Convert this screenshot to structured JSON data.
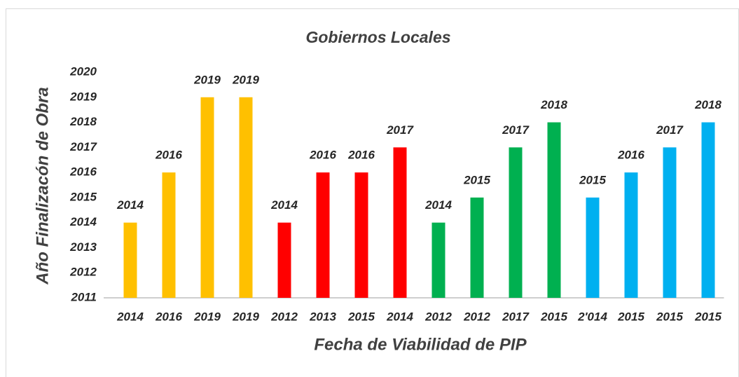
{
  "chart_data": {
    "type": "bar",
    "title": "Gobiernos Locales",
    "x_label": "Fecha de Viabilidad de PIP",
    "y_label": "Año Finalizacón de Obra",
    "categories": [
      "2014",
      "2016",
      "2019",
      "2019",
      "2012",
      "2013",
      "2015",
      "2014",
      "2012",
      "2012",
      "2017",
      "2015",
      "2'014",
      "2015",
      "2015",
      "2015"
    ],
    "values": [
      2014,
      2016,
      2019,
      2019,
      2014,
      2016,
      2016,
      2017,
      2014,
      2015,
      2017,
      2018,
      2015,
      2016,
      2017,
      2018
    ],
    "colors": [
      "#FFC000",
      "#FFC000",
      "#FFC000",
      "#FFC000",
      "#FF0000",
      "#FF0000",
      "#FF0000",
      "#FF0000",
      "#00B050",
      "#00B050",
      "#00B050",
      "#00B050",
      "#00B0F0",
      "#00B0F0",
      "#00B0F0",
      "#00B0F0"
    ],
    "ylim": [
      2011,
      2020
    ],
    "yticks": [
      2011,
      2012,
      2013,
      2014,
      2015,
      2016,
      2017,
      2018,
      2019,
      2020
    ]
  }
}
